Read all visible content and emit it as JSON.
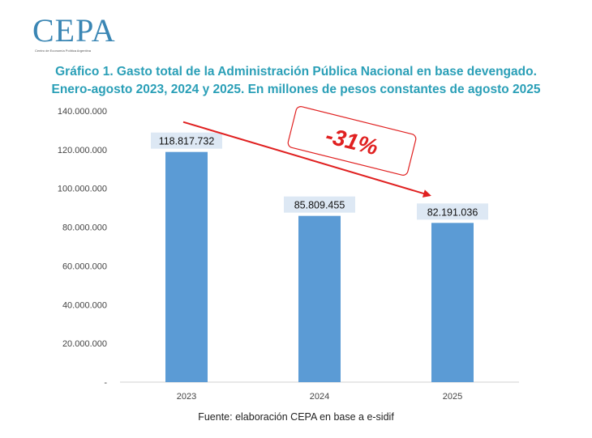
{
  "logo": {
    "text": "CEPA",
    "subtitle": "Centro de Economía Política Argentina"
  },
  "title_line1": "Gráfico 1. Gasto total de la Administración Pública Nacional en base devengado.",
  "title_line2": "Enero-agosto 2023, 2024 y 2025. En millones de pesos constantes de agosto 2025",
  "source": "Fuente: elaboración CEPA en base a e-sidif",
  "colors": {
    "bar": "#5b9bd5",
    "label_bg": "#dde8f4",
    "annotation": "#e02020",
    "title": "#2a9fb7"
  },
  "chart_data": {
    "type": "bar",
    "categories": [
      "2023",
      "2024",
      "2025"
    ],
    "values": [
      118817732,
      85809455,
      82191036
    ],
    "value_labels": [
      "118.817.732",
      "85.809.455",
      "82.191.036"
    ],
    "ylim": [
      0,
      140000000
    ],
    "yticks": [
      0,
      20000000,
      40000000,
      60000000,
      80000000,
      100000000,
      120000000,
      140000000
    ],
    "ytick_labels": [
      "-",
      "20.000.000",
      "40.000.000",
      "60.000.000",
      "80.000.000",
      "100.000.000",
      "120.000.000",
      "140.000.000"
    ],
    "grid": false,
    "annotation": {
      "text": "-31%",
      "from": "2023",
      "to": "2025"
    }
  }
}
